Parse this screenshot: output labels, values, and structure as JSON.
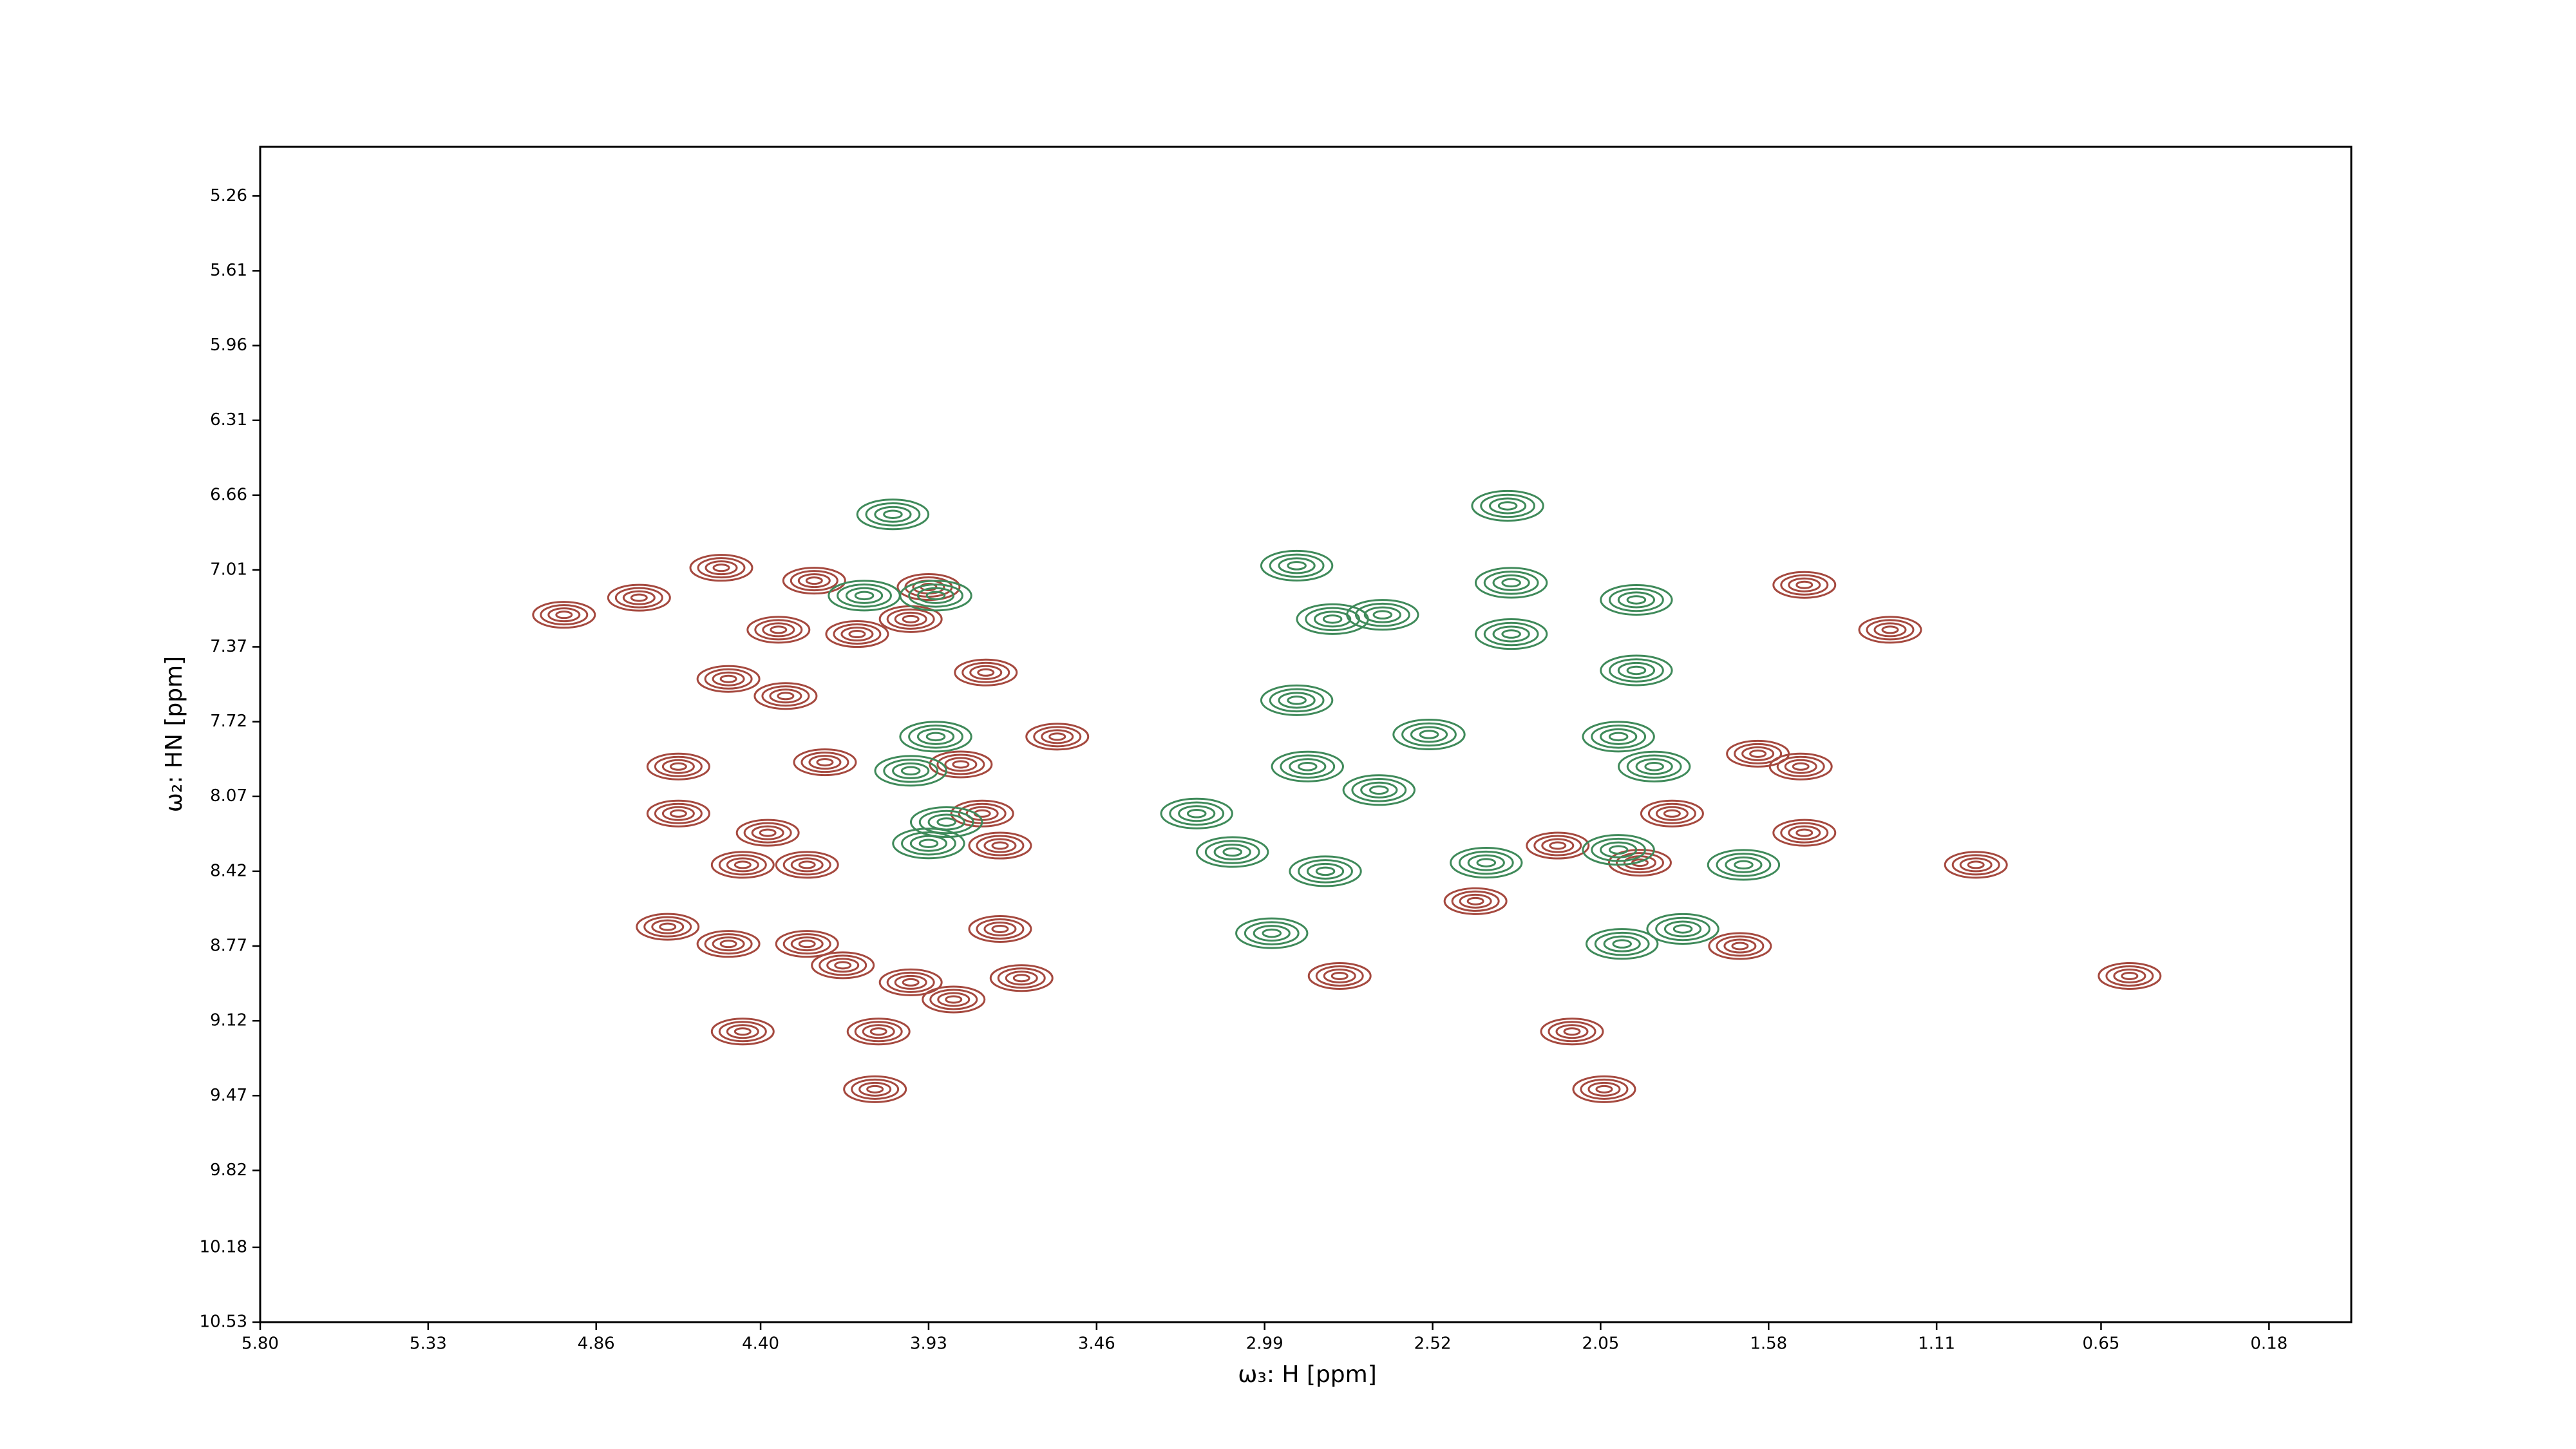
{
  "chart_data": {
    "type": "contour",
    "xlabel": "ω₃: H [ppm]",
    "ylabel": "ω₂: HN [ppm]",
    "xlim": [
      5.8,
      -0.05
    ],
    "ylim": [
      10.53,
      5.03
    ],
    "xticks": [
      {
        "value": 5.8,
        "label": "5.80"
      },
      5.33,
      4.86,
      {
        "value": 4.4,
        "label": "4.40"
      },
      3.93,
      3.46,
      2.99,
      2.52,
      2.05,
      1.58,
      1.11,
      0.65,
      0.18
    ],
    "yticks": [
      5.26,
      5.61,
      5.96,
      6.31,
      6.66,
      7.01,
      7.37,
      7.72,
      8.07,
      8.42,
      8.77,
      9.12,
      9.47,
      9.82,
      10.18,
      10.53
    ],
    "series": [
      {
        "color": "#a5493f",
        "x": [
          4.95,
          4.74,
          4.51,
          4.35,
          4.25,
          3.93,
          3.98,
          4.13,
          4.49,
          4.33,
          4.63,
          4.63,
          4.38,
          4.27,
          4.22,
          4.45,
          4.66,
          4.49,
          4.27,
          4.17,
          3.98,
          3.86,
          3.67,
          4.45,
          4.07,
          4.08,
          3.73,
          3.73,
          3.78,
          3.84,
          3.57,
          3.77,
          1.48,
          1.24,
          1.61,
          1.48,
          1.85,
          1.94,
          2.17,
          1.66,
          2.4,
          2.78,
          2.13,
          2.04,
          0.57,
          1.0,
          1.49
        ],
        "y": [
          7.22,
          7.14,
          7.0,
          7.29,
          7.06,
          7.09,
          7.24,
          7.31,
          7.52,
          7.6,
          7.93,
          8.15,
          8.24,
          8.39,
          7.91,
          8.39,
          8.68,
          8.76,
          8.76,
          8.86,
          8.94,
          9.02,
          8.92,
          9.17,
          9.17,
          9.44,
          8.69,
          8.3,
          8.15,
          7.92,
          7.79,
          7.49,
          7.08,
          7.29,
          7.87,
          8.24,
          8.15,
          8.38,
          8.3,
          8.77,
          8.56,
          8.91,
          9.17,
          9.44,
          8.91,
          8.39,
          7.93
        ]
      },
      {
        "color": "#3f8a5a",
        "x": [
          4.03,
          4.11,
          3.91,
          3.98,
          3.88,
          3.93,
          3.91,
          3.18,
          3.08,
          2.9,
          2.8,
          2.66,
          2.9,
          2.87,
          2.67,
          2.97,
          2.82,
          2.31,
          2.3,
          2.3,
          2.37,
          1.95,
          1.95,
          1.9,
          2.0,
          1.99,
          1.82,
          1.65,
          2.0,
          2.53
        ],
        "y": [
          6.75,
          7.13,
          7.13,
          7.95,
          8.19,
          8.29,
          7.79,
          8.15,
          8.33,
          6.99,
          7.24,
          7.22,
          7.62,
          7.93,
          8.04,
          8.71,
          8.42,
          6.71,
          7.07,
          7.31,
          8.38,
          7.15,
          7.48,
          7.93,
          8.32,
          8.76,
          8.69,
          8.39,
          7.79,
          7.78
        ]
      }
    ]
  }
}
